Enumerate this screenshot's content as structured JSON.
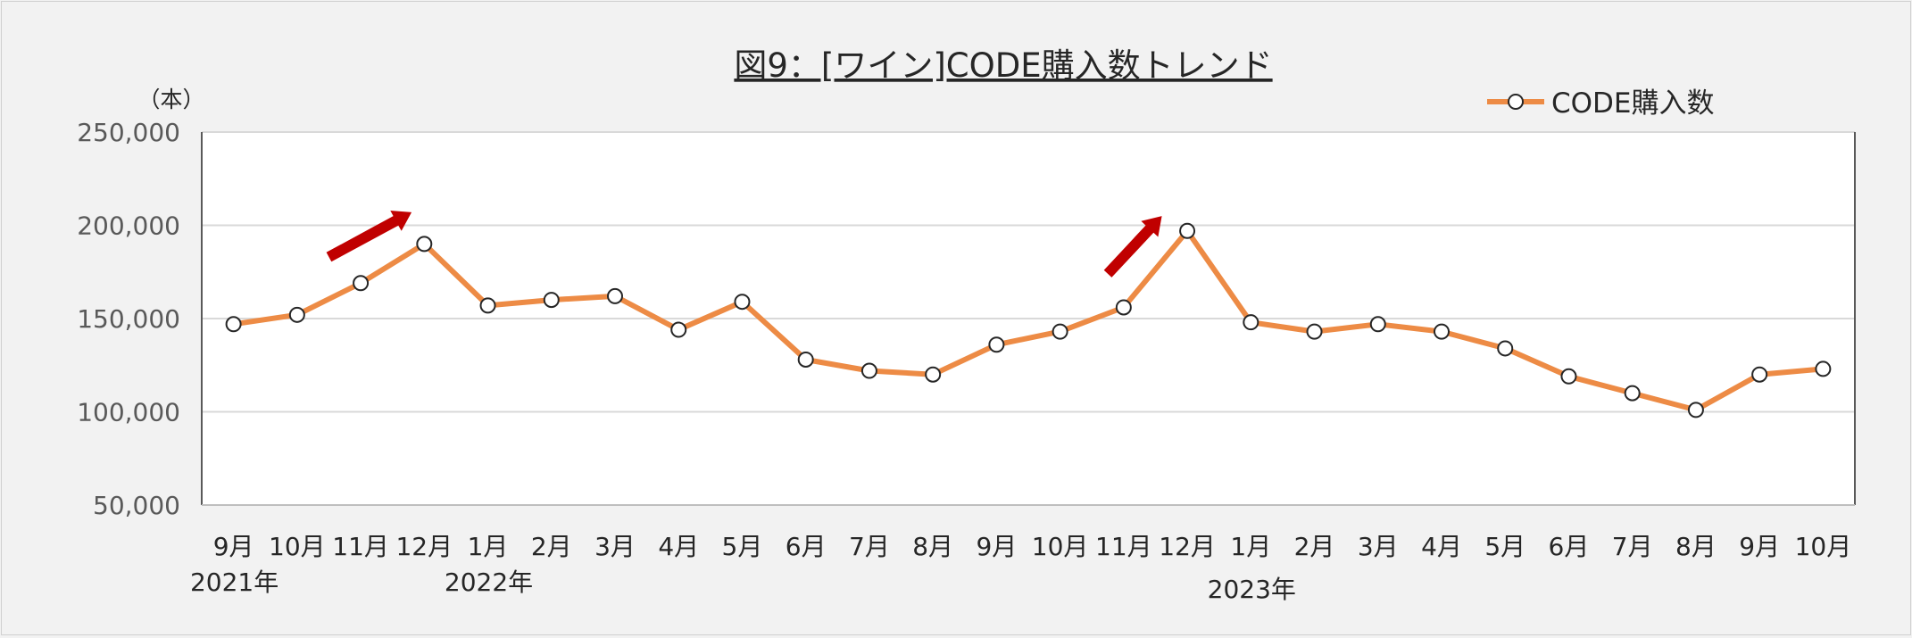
{
  "chart_data": {
    "type": "line",
    "title": "図9：[ワイン]CODE購入数トレンド",
    "unit_label": "（本）",
    "ylim": [
      50000,
      250000
    ],
    "yticks": [
      50000,
      100000,
      150000,
      200000,
      250000
    ],
    "ytick_labels": [
      "50,000",
      "100,000",
      "150,000",
      "200,000",
      "250,000"
    ],
    "grid": true,
    "legend_position": "top-right",
    "categories": [
      "9月",
      "10月",
      "11月",
      "12月",
      "1月",
      "2月",
      "3月",
      "4月",
      "5月",
      "6月",
      "7月",
      "8月",
      "9月",
      "10月",
      "11月",
      "12月",
      "1月",
      "2月",
      "3月",
      "4月",
      "5月",
      "6月",
      "7月",
      "8月",
      "9月",
      "10月"
    ],
    "year_labels": [
      {
        "index": 0,
        "label": "2021年"
      },
      {
        "index": 4,
        "label": "2022年"
      },
      {
        "index": 16,
        "label": "2023年"
      }
    ],
    "series": [
      {
        "name": "CODE購入数",
        "color": "#ed8b45",
        "values": [
          147000,
          152000,
          169000,
          190000,
          157000,
          160000,
          162000,
          144000,
          159000,
          128000,
          122000,
          120000,
          136000,
          143000,
          156000,
          197000,
          148000,
          143000,
          147000,
          143000,
          134000,
          119000,
          110000,
          101000,
          120000,
          123000
        ]
      }
    ],
    "annotations": [
      {
        "type": "arrow",
        "color": "#c00000",
        "from_index": 1.5,
        "from_value": 183000,
        "to_index": 2.8,
        "to_value": 207000
      },
      {
        "type": "arrow",
        "color": "#c00000",
        "from_index": 13.75,
        "from_value": 174000,
        "to_index": 14.6,
        "to_value": 205000
      }
    ]
  }
}
